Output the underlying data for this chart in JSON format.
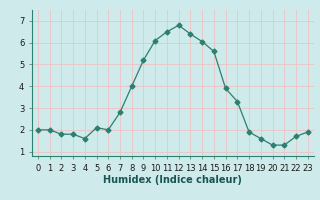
{
  "x": [
    0,
    1,
    2,
    3,
    4,
    5,
    6,
    7,
    8,
    9,
    10,
    11,
    12,
    13,
    14,
    15,
    16,
    17,
    18,
    19,
    20,
    21,
    22,
    23
  ],
  "y": [
    2.0,
    2.0,
    1.8,
    1.8,
    1.6,
    2.1,
    2.0,
    2.8,
    4.0,
    5.2,
    6.1,
    6.5,
    6.8,
    6.4,
    6.05,
    5.6,
    3.9,
    3.3,
    1.9,
    1.6,
    1.3,
    1.3,
    1.7,
    1.9
  ],
  "line_color": "#2d7f70",
  "marker": "D",
  "marker_size": 2.5,
  "bg_color": "#ceeaea",
  "grid_color": "#e8c8c8",
  "xlabel": "Humidex (Indice chaleur)",
  "ylim": [
    0.8,
    7.5
  ],
  "xlim": [
    -0.5,
    23.5
  ],
  "yticks": [
    1,
    2,
    3,
    4,
    5,
    6,
    7
  ],
  "font_size": 6,
  "xlabel_fontsize": 7
}
